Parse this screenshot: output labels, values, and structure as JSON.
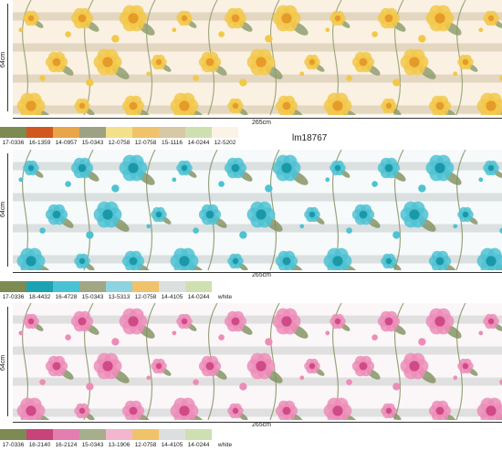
{
  "model_code": "lm18767",
  "panels": [
    {
      "width_label": "265cm",
      "height_label": "64cm",
      "base_color": "#fbf1e2",
      "flower_color": "#f2c84a",
      "flower_center": "#e69a2a",
      "chevron_color": "#d9ccb4",
      "leaf_color": "#8a9a6a",
      "swatches": [
        "#7d8a52",
        "#d2571e",
        "#e8a54a",
        "#9ea184",
        "#f3e08a",
        "#f0c36a",
        "#d7c8a6",
        "#cfe0b0",
        "#fbf3e6"
      ],
      "codes": [
        "17-0336",
        "16-1359",
        "14-0957",
        "15-0343",
        "12-0758",
        "12-0758",
        "15-1116",
        "14-0244",
        "12-5202"
      ]
    },
    {
      "width_label": "265cm",
      "height_label": "64cm",
      "base_color": "#f7fafb",
      "flower_color": "#4fc2d2",
      "flower_center": "#1b98a8",
      "chevron_color": "#cfd4d6",
      "leaf_color": "#7f8f5c",
      "swatches": [
        "#7d8a52",
        "#1ba3b3",
        "#49c3d3",
        "#a1a784",
        "#8fd3df",
        "#f0c36a",
        "#dcdfe0",
        "#cfe0b0",
        "#ffffff"
      ],
      "codes": [
        "17-0336",
        "18-4432",
        "16-4728",
        "15-0343",
        "13-5313",
        "12-0758",
        "14-4105",
        "14-0244",
        "white"
      ]
    },
    {
      "width_label": "265cm",
      "height_label": "64cm",
      "base_color": "#fbf7f8",
      "flower_color": "#ec8db8",
      "flower_center": "#cf4a86",
      "chevron_color": "#d6d6d6",
      "leaf_color": "#7f8f5c",
      "swatches": [
        "#7d8a52",
        "#c8437a",
        "#e27fb0",
        "#a7ae8c",
        "#f2b6cf",
        "#f0c36a",
        "#dcdfe0",
        "#cfe0b0",
        "#ffffff"
      ],
      "codes": [
        "17-0336",
        "18-2140",
        "16-2124",
        "15-0343",
        "13-1906",
        "12-0758",
        "14-4105",
        "14-0244",
        "white"
      ]
    }
  ]
}
